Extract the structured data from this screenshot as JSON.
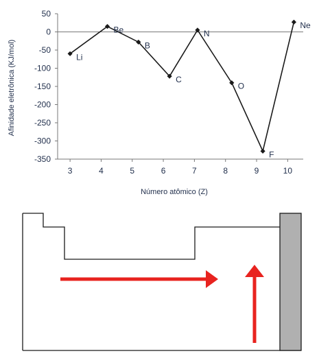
{
  "chart_data": {
    "type": "line",
    "xlabel": "Número atômico (Z)",
    "ylabel": "Afinidade eletrônica (KJ/mol)",
    "x_ticks": [
      3,
      4,
      5,
      6,
      7,
      8,
      9,
      10
    ],
    "y_ticks": [
      50,
      0,
      -50,
      -100,
      -150,
      -200,
      -250,
      -300,
      -350
    ],
    "ylim": [
      -350,
      50
    ],
    "xlim": [
      2.6,
      10.5
    ],
    "grid": false,
    "reference_line": 0,
    "series": [
      {
        "points": [
          {
            "label": "Li",
            "x": 3,
            "y": -60
          },
          {
            "label": "Be",
            "x": 4.2,
            "y": 15
          },
          {
            "label": "B",
            "x": 5.2,
            "y": -28
          },
          {
            "label": "C",
            "x": 6.2,
            "y": -122
          },
          {
            "label": "N",
            "x": 7.1,
            "y": 5
          },
          {
            "label": "O",
            "x": 8.2,
            "y": -140
          },
          {
            "label": "F",
            "x": 9.2,
            "y": -328
          },
          {
            "label": "Ne",
            "x": 10.2,
            "y": 27
          }
        ]
      }
    ]
  },
  "colors": {
    "line": "#1a1a1a",
    "axis": "#777777",
    "text": "#1f2d4a",
    "arrow": "#e8231f",
    "noble_column": "#b0b0b0"
  },
  "diagram": {
    "arrows": [
      {
        "direction": "right",
        "icon": "arrow-right-icon"
      },
      {
        "direction": "up",
        "icon": "arrow-up-icon"
      }
    ]
  }
}
